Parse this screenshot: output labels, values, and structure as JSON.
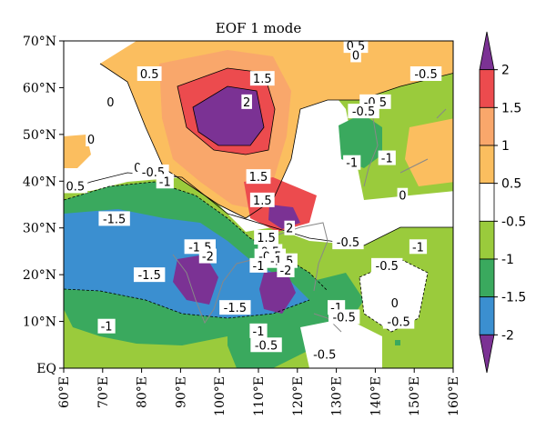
{
  "chart_data": {
    "type": "heatmap",
    "title": "EOF 1 mode",
    "xlabel": "",
    "ylabel": "",
    "x_ticks": [
      "60°E",
      "70°E",
      "80°E",
      "90°E",
      "100°E",
      "110°E",
      "120°E",
      "130°E",
      "140°E",
      "150°E",
      "160°E"
    ],
    "y_ticks": [
      "EQ",
      "10°N",
      "20°N",
      "30°N",
      "40°N",
      "50°N",
      "60°N",
      "70°N"
    ],
    "xlim": [
      60,
      160
    ],
    "ylim": [
      0,
      70
    ],
    "colorbar": {
      "ticks": [
        "2",
        "1.5",
        "1",
        "0.5",
        "-0.5",
        "-1",
        "-1.5",
        "-2"
      ],
      "levels": [
        -2,
        -1.5,
        -1,
        -0.5,
        0.5,
        1,
        1.5,
        2
      ],
      "colors": [
        "#7b3294",
        "#ec4b4e",
        "#f9a76b",
        "#fbbe5f",
        "#ffffff",
        "#9acb3c",
        "#3aa95e",
        "#3b8fd0",
        "#7b3294"
      ],
      "extend": "both"
    },
    "contour_labels": [
      {
        "text": "0.5",
        "lon": 82,
        "lat": 63
      },
      {
        "text": "0",
        "lon": 72,
        "lat": 57
      },
      {
        "text": "0",
        "lon": 67,
        "lat": 49
      },
      {
        "text": "0.5",
        "lon": 63,
        "lat": 39
      },
      {
        "text": "1.5",
        "lon": 111,
        "lat": 62
      },
      {
        "text": "2",
        "lon": 107,
        "lat": 57
      },
      {
        "text": "0",
        "lon": 79,
        "lat": 43
      },
      {
        "text": "-0.5",
        "lon": 83,
        "lat": 42
      },
      {
        "text": "-1",
        "lon": 86,
        "lat": 40
      },
      {
        "text": "1.5",
        "lon": 110,
        "lat": 41
      },
      {
        "text": "1.5",
        "lon": 111,
        "lat": 36
      },
      {
        "text": "-1.5",
        "lon": 73,
        "lat": 32
      },
      {
        "text": "2",
        "lon": 118,
        "lat": 30
      },
      {
        "text": "1.5",
        "lon": 112,
        "lat": 28
      },
      {
        "text": "-1.5",
        "lon": 95,
        "lat": 26
      },
      {
        "text": "-2",
        "lon": 97,
        "lat": 24
      },
      {
        "text": "0.5",
        "lon": 113,
        "lat": 25
      },
      {
        "text": "-0.5",
        "lon": 113,
        "lat": 24
      },
      {
        "text": "-1",
        "lon": 110,
        "lat": 22
      },
      {
        "text": "-1.5",
        "lon": 116,
        "lat": 23
      },
      {
        "text": "-2",
        "lon": 117,
        "lat": 21
      },
      {
        "text": "-1.5",
        "lon": 82,
        "lat": 20
      },
      {
        "text": "-0.5",
        "lon": 133,
        "lat": 27
      },
      {
        "text": "-1",
        "lon": 134,
        "lat": 44
      },
      {
        "text": "-1",
        "lon": 151,
        "lat": 26
      },
      {
        "text": "-0.5",
        "lon": 143,
        "lat": 22
      },
      {
        "text": "0",
        "lon": 145,
        "lat": 14
      },
      {
        "text": "-0.5",
        "lon": 146,
        "lat": 10
      },
      {
        "text": "-1.5",
        "lon": 104,
        "lat": 13
      },
      {
        "text": "-1",
        "lon": 130,
        "lat": 13
      },
      {
        "text": "-0.5",
        "lon": 132,
        "lat": 11
      },
      {
        "text": "-1",
        "lon": 71,
        "lat": 9
      },
      {
        "text": "-1",
        "lon": 110,
        "lat": 8
      },
      {
        "text": "-0.5",
        "lon": 112,
        "lat": 5
      },
      {
        "text": "-0.5",
        "lon": 127,
        "lat": 3
      },
      {
        "text": "0.5",
        "lon": 135,
        "lat": 69
      },
      {
        "text": "0",
        "lon": 135,
        "lat": 67
      },
      {
        "text": "-0.5",
        "lon": 153,
        "lat": 63
      },
      {
        "text": "-0.5",
        "lon": 140,
        "lat": 57
      },
      {
        "text": "-0.5",
        "lon": 137,
        "lat": 55
      },
      {
        "text": "0",
        "lon": 147,
        "lat": 37
      },
      {
        "text": "-1",
        "lon": 143,
        "lat": 45
      }
    ]
  }
}
